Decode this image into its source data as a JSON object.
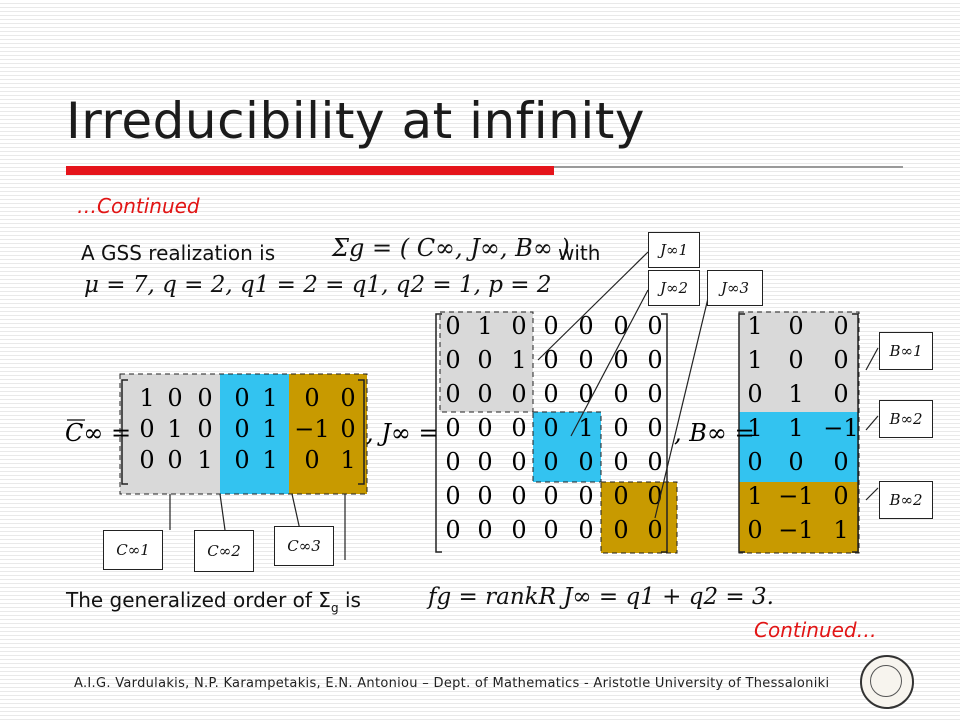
{
  "slide": {
    "title": "Irreducibility at infinity",
    "continued_top": "…Continued",
    "gss_text": "A GSS realization is",
    "with_text": "with",
    "gen_order_text": "The generalized order of Σ",
    "gen_order_sub": "g",
    "gen_order_is": "is",
    "continued_bottom": "Continued…",
    "footer": "A.I.G. Vardulakis, N.P. Karampetakis, E.N. Antoniou – Dept. of Mathematics - Aristotle University of Thessaloniki"
  },
  "math": {
    "gss_formula": "Σg = ( C∞, J∞, B∞ )",
    "params_line": "μ = 7,  q = 2,  q1 = 2 = q1,  q2 = 1,  p = 2",
    "order_formula": "fg = rankR J∞ = q1 + q2 = 3.",
    "c_label": "C∞ =",
    "j_label": ", J∞ =",
    "b_label": ", B∞ ="
  },
  "matrices": {
    "C": [
      [
        "1",
        "0",
        "0",
        "0",
        "1",
        "0",
        "0"
      ],
      [
        "0",
        "1",
        "0",
        "0",
        "1",
        "−1",
        "0"
      ],
      [
        "0",
        "0",
        "1",
        "0",
        "1",
        "0",
        "1"
      ]
    ],
    "J": [
      [
        "0",
        "1",
        "0",
        "0",
        "0",
        "0",
        "0"
      ],
      [
        "0",
        "0",
        "1",
        "0",
        "0",
        "0",
        "0"
      ],
      [
        "0",
        "0",
        "0",
        "0",
        "0",
        "0",
        "0"
      ],
      [
        "0",
        "0",
        "0",
        "0",
        "1",
        "0",
        "0"
      ],
      [
        "0",
        "0",
        "0",
        "0",
        "0",
        "0",
        "0"
      ],
      [
        "0",
        "0",
        "0",
        "0",
        "0",
        "0",
        "0"
      ],
      [
        "0",
        "0",
        "0",
        "0",
        "0",
        "0",
        "0"
      ]
    ],
    "B": [
      [
        "1",
        "0",
        "0"
      ],
      [
        "1",
        "0",
        "0"
      ],
      [
        "0",
        "1",
        "0"
      ],
      [
        "1",
        "1",
        "−1"
      ],
      [
        "0",
        "0",
        "0"
      ],
      [
        "1",
        "−1",
        "0"
      ],
      [
        "0",
        "−1",
        "1"
      ]
    ]
  },
  "labels": {
    "J1": "J∞1",
    "J2": "J∞2",
    "J3": "J∞3",
    "B1": "B∞1",
    "B2": "B∞2",
    "B3": "B∞2",
    "C1": "C∞1",
    "C2": "C∞2",
    "C3": "C∞3"
  },
  "colors": {
    "grey": "#d9d9d9",
    "cyan": "#33c3f0",
    "gold": "#c89a00",
    "accent": "#e5141b"
  }
}
